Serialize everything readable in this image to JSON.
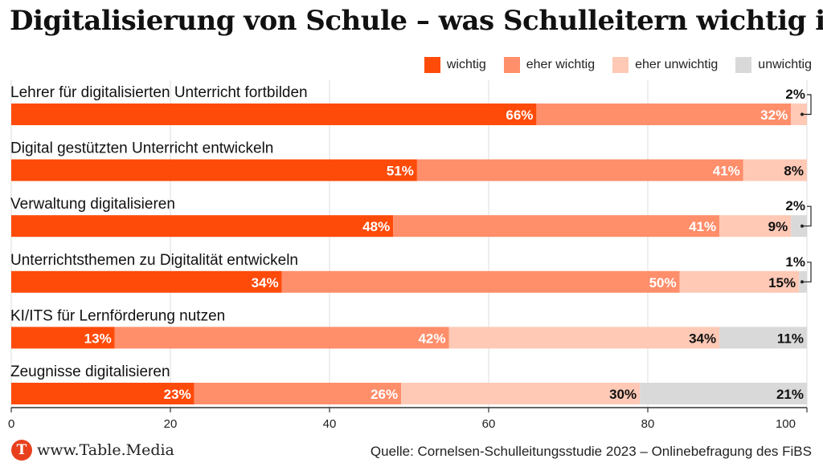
{
  "title": "Digitalisierung von Schule – was Schulleitern wichtig ist",
  "legend": [
    {
      "label": "wichtig",
      "color": "#ff4b0a"
    },
    {
      "label": "eher wichtig",
      "color": "#ff8e6b"
    },
    {
      "label": "eher unwichtig",
      "color": "#ffc9b6"
    },
    {
      "label": "unwichtig",
      "color": "#d9d9d9"
    }
  ],
  "footer": {
    "brand_logo": "T",
    "brand": "www.Table.Media",
    "source": "Quelle: Cornelsen-Schulleitungsstudie 2023 – Onlinebefragung des FiBS"
  },
  "chart_data": {
    "type": "bar",
    "orientation": "horizontal",
    "stacked": true,
    "title": "Digitalisierung von Schule – was Schulleitern wichtig ist",
    "xlabel": "",
    "ylabel": "",
    "xlim": [
      0,
      100
    ],
    "x_ticks": [
      "0",
      "20",
      "40",
      "60",
      "80",
      "100"
    ],
    "grid": true,
    "legend_position": "top-right",
    "categories": [
      "Lehrer für digitalisierten Unterricht fortbilden",
      "Digital gestützten Unterricht entwickeln",
      "Verwaltung digitalisieren",
      "Unterrichtsthemen zu Digitalität entwickeln",
      "KI/ITS für Lernförderung nutzen",
      "Zeugnisse digitalisieren"
    ],
    "series": [
      {
        "name": "wichtig",
        "color": "#ff4b0a",
        "values": [
          66,
          51,
          48,
          34,
          13,
          23
        ],
        "labels": [
          "66%",
          "51%",
          "48%",
          "34%",
          "13%",
          "23%"
        ]
      },
      {
        "name": "eher wichtig",
        "color": "#ff8e6b",
        "values": [
          32,
          41,
          41,
          50,
          42,
          26
        ],
        "labels": [
          "32%",
          "41%",
          "41%",
          "50%",
          "42%",
          "26%"
        ]
      },
      {
        "name": "eher unwichtig",
        "color": "#ffc9b6",
        "values": [
          2,
          8,
          9,
          15,
          34,
          30
        ],
        "labels": [
          "2%",
          "8%",
          "9%",
          "15%",
          "34%",
          "30%"
        ]
      },
      {
        "name": "unwichtig",
        "color": "#d9d9d9",
        "values": [
          0,
          0,
          2,
          1,
          11,
          21
        ],
        "labels": [
          "",
          "",
          "2%",
          "1%",
          "11%",
          "21%"
        ]
      }
    ]
  }
}
